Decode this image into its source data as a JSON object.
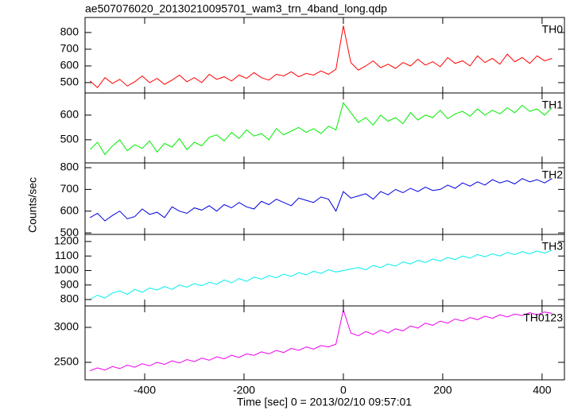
{
  "chart_data": {
    "type": "line",
    "title": "ae507076020_20130210095701_wam3_trn_4band_long.qdp",
    "x_label": "Time [sec] 0 = 2013/02/10 09:57:01",
    "y_label": "Counts/sec",
    "xlim": [
      -520,
      445
    ],
    "xticks": [
      -400,
      -200,
      0,
      200,
      400
    ],
    "x": [
      -510,
      -495,
      -480,
      -465,
      -450,
      -435,
      -420,
      -405,
      -390,
      -375,
      -360,
      -345,
      -330,
      -315,
      -300,
      -285,
      -270,
      -255,
      -240,
      -225,
      -210,
      -195,
      -180,
      -165,
      -150,
      -135,
      -120,
      -105,
      -90,
      -75,
      -60,
      -45,
      -30,
      -15,
      0,
      15,
      30,
      45,
      60,
      75,
      90,
      105,
      120,
      135,
      150,
      165,
      180,
      195,
      210,
      225,
      240,
      255,
      270,
      285,
      300,
      315,
      330,
      345,
      360,
      375,
      390,
      405,
      420
    ],
    "series": [
      {
        "name": "TH0",
        "color": "#ff0000",
        "ylim": [
          438,
          890
        ],
        "yticks": [
          500,
          600,
          700,
          800
        ],
        "values": [
          510,
          470,
          530,
          495,
          520,
          480,
          505,
          540,
          500,
          525,
          490,
          515,
          545,
          505,
          530,
          500,
          550,
          520,
          535,
          510,
          545,
          525,
          560,
          530,
          515,
          550,
          540,
          565,
          535,
          555,
          545,
          570,
          550,
          580,
          840,
          620,
          575,
          600,
          630,
          590,
          610,
          585,
          620,
          600,
          640,
          605,
          625,
          595,
          650,
          615,
          630,
          600,
          660,
          620,
          645,
          610,
          670,
          625,
          650,
          615,
          660,
          630,
          645
        ]
      },
      {
        "name": "TH1",
        "color": "#00ee00",
        "ylim": [
          406,
          690
        ],
        "yticks": [
          500,
          600
        ],
        "values": [
          460,
          490,
          440,
          475,
          500,
          455,
          480,
          465,
          495,
          450,
          485,
          470,
          505,
          460,
          490,
          475,
          510,
          520,
          495,
          530,
          505,
          540,
          515,
          525,
          500,
          545,
          520,
          535,
          550,
          530,
          545,
          525,
          555,
          540,
          650,
          610,
          570,
          590,
          560,
          600,
          575,
          590,
          565,
          610,
          580,
          600,
          590,
          620,
          585,
          605,
          615,
          595,
          625,
          600,
          620,
          605,
          630,
          610,
          640,
          615,
          625,
          600,
          630
        ]
      },
      {
        "name": "TH2",
        "color": "#0000dd",
        "ylim": [
          493,
          822
        ],
        "yticks": [
          500,
          600,
          700,
          800
        ],
        "values": [
          570,
          590,
          555,
          580,
          600,
          565,
          575,
          610,
          585,
          595,
          570,
          620,
          600,
          590,
          615,
          605,
          625,
          600,
          630,
          615,
          640,
          620,
          610,
          645,
          630,
          655,
          640,
          625,
          660,
          650,
          640,
          665,
          655,
          600,
          690,
          660,
          670,
          680,
          655,
          690,
          675,
          700,
          685,
          705,
          690,
          710,
          695,
          700,
          720,
          705,
          730,
          715,
          735,
          720,
          745,
          730,
          740,
          725,
          750,
          735,
          745,
          730,
          750
        ]
      },
      {
        "name": "TH3",
        "color": "#00eeee",
        "ylim": [
          756,
          1249
        ],
        "yticks": [
          800,
          900,
          1000,
          1100,
          1200
        ],
        "values": [
          800,
          830,
          810,
          845,
          860,
          835,
          870,
          850,
          880,
          865,
          890,
          870,
          900,
          885,
          910,
          895,
          920,
          905,
          935,
          915,
          945,
          925,
          955,
          940,
          965,
          950,
          975,
          960,
          985,
          970,
          995,
          980,
          1005,
          990,
          1000,
          1010,
          1020,
          1005,
          1035,
          1020,
          1045,
          1030,
          1060,
          1045,
          1070,
          1055,
          1080,
          1065,
          1090,
          1075,
          1100,
          1085,
          1110,
          1095,
          1115,
          1100,
          1125,
          1110,
          1130,
          1115,
          1135,
          1120,
          1140
        ]
      },
      {
        "name": "TH0123",
        "color": "#ee00ee",
        "ylim": [
          2250,
          3307
        ],
        "yticks": [
          2500,
          3000
        ],
        "values": [
          2380,
          2420,
          2390,
          2440,
          2410,
          2460,
          2430,
          2480,
          2450,
          2500,
          2470,
          2520,
          2490,
          2540,
          2510,
          2560,
          2530,
          2580,
          2550,
          2600,
          2570,
          2620,
          2600,
          2650,
          2620,
          2670,
          2640,
          2700,
          2670,
          2720,
          2690,
          2740,
          2720,
          2760,
          3250,
          2920,
          2880,
          2940,
          2900,
          2960,
          2920,
          2980,
          2950,
          3020,
          2990,
          3060,
          3030,
          3090,
          3060,
          3120,
          3090,
          3140,
          3110,
          3160,
          3130,
          3180,
          3150,
          3190,
          3170,
          3210,
          3180,
          3220,
          3200
        ]
      }
    ]
  }
}
